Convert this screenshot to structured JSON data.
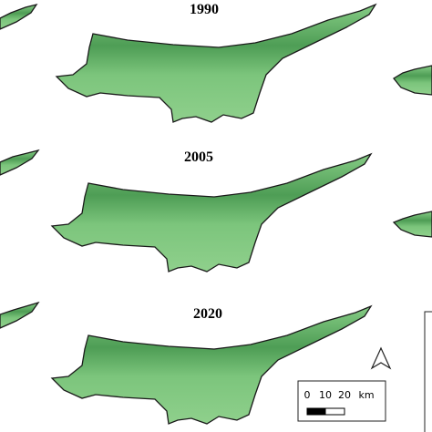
{
  "maps": [
    {
      "year": "1990"
    },
    {
      "year": "2005"
    },
    {
      "year": "2020"
    }
  ],
  "scale_bar": {
    "labels": [
      "0",
      "10",
      "20"
    ],
    "unit": "km"
  }
}
